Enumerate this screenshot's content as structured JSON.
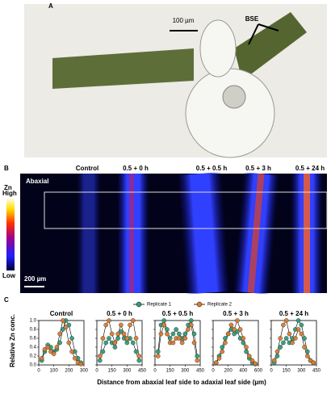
{
  "panel_a": {
    "label": "A",
    "scale_bar": "100 µm",
    "annotation": "BSE"
  },
  "panel_b": {
    "label": "B",
    "columns": [
      "Control",
      "0.5 + 0 h",
      "0.5 + 0.5 h",
      "0.5 + 3 h",
      "0.5 + 24 h"
    ],
    "region_label": "Abaxial",
    "colorbar": {
      "title": "Zn",
      "high": "High",
      "low": "Low"
    },
    "scale_bar": "200 µm"
  },
  "panel_c": {
    "label": "C",
    "y_label": "Relative Zn conc.",
    "x_label": "Distance from abaxial leaf side to adaxial leaf side (µm)"
  },
  "chart_data": [
    {
      "type": "scatter",
      "title": "Control",
      "xlim": [
        0,
        300
      ],
      "xticks": [
        0,
        100,
        200,
        300
      ],
      "ylim": [
        0,
        1
      ],
      "yticks": [
        {
          "value": 0,
          "label": "0.0"
        },
        0.2,
        0.4,
        0.6,
        0.8,
        {
          "value": 1,
          "label": "1.0"
        }
      ],
      "x": [
        20,
        40,
        60,
        80,
        100,
        120,
        140,
        160,
        180,
        200,
        220,
        240,
        260,
        280
      ],
      "series": [
        {
          "name": "Replicate 1",
          "color": "#2a9d78",
          "values": [
            0.1,
            0.3,
            0.45,
            0.4,
            0.3,
            0.35,
            0.5,
            0.8,
            1.0,
            0.9,
            0.6,
            0.3,
            0.15,
            0.05
          ]
        },
        {
          "name": "Replicate 2",
          "color": "#e07b2a",
          "values": [
            0.15,
            0.35,
            0.4,
            0.3,
            0.25,
            0.4,
            0.7,
            1.0,
            0.85,
            0.5,
            0.3,
            0.15,
            0.05,
            0.02
          ]
        }
      ]
    },
    {
      "type": "scatter",
      "title": "0.5 + 0 h",
      "xlim": [
        0,
        450
      ],
      "xticks": [
        0,
        150,
        300,
        450
      ],
      "ylim": [
        0,
        1
      ],
      "yticks": [
        0,
        0.2,
        0.4,
        0.6,
        0.8,
        1
      ],
      "x": [
        30,
        60,
        90,
        120,
        150,
        180,
        210,
        240,
        270,
        300,
        330,
        360,
        390,
        420
      ],
      "series": [
        {
          "name": "Replicate 1",
          "color": "#2a9d78",
          "values": [
            0.1,
            0.3,
            0.5,
            0.6,
            0.5,
            0.4,
            0.6,
            0.75,
            0.6,
            0.5,
            0.6,
            0.5,
            0.3,
            0.1
          ]
        },
        {
          "name": "Replicate 2",
          "color": "#e07b2a",
          "values": [
            0.2,
            0.6,
            0.9,
            1.0,
            0.7,
            0.5,
            0.7,
            0.9,
            0.7,
            0.6,
            0.9,
            1.0,
            0.6,
            0.2
          ]
        }
      ]
    },
    {
      "type": "scatter",
      "title": "0.5 + 0.5 h",
      "xlim": [
        0,
        450
      ],
      "xticks": [
        0,
        150,
        300,
        450
      ],
      "ylim": [
        0,
        1
      ],
      "yticks": [
        0,
        0.2,
        0.4,
        0.6,
        0.8,
        1
      ],
      "x": [
        30,
        60,
        90,
        120,
        150,
        180,
        210,
        240,
        270,
        300,
        330,
        360,
        390,
        420
      ],
      "series": [
        {
          "name": "Replicate 1",
          "color": "#2a9d78",
          "values": [
            0.3,
            0.9,
            1.0,
            0.8,
            0.6,
            0.7,
            0.8,
            0.7,
            0.6,
            0.7,
            0.9,
            1.0,
            0.7,
            0.2
          ]
        },
        {
          "name": "Replicate 2",
          "color": "#e07b2a",
          "values": [
            0.2,
            0.7,
            0.9,
            0.7,
            0.5,
            0.5,
            0.6,
            0.6,
            0.5,
            0.6,
            0.8,
            0.9,
            0.5,
            0.1
          ]
        }
      ]
    },
    {
      "type": "scatter",
      "title": "0.5 + 3 h",
      "xlim": [
        0,
        600
      ],
      "xticks": [
        0,
        200,
        400,
        600
      ],
      "ylim": [
        0,
        1
      ],
      "yticks": [
        0,
        0.2,
        0.4,
        0.6,
        0.8,
        1
      ],
      "x": [
        40,
        80,
        120,
        160,
        200,
        240,
        280,
        320,
        360,
        400,
        440,
        480,
        520,
        560
      ],
      "series": [
        {
          "name": "Replicate 1",
          "color": "#2a9d78",
          "values": [
            0.05,
            0.2,
            0.4,
            0.6,
            0.7,
            0.8,
            0.7,
            0.75,
            0.6,
            0.5,
            0.3,
            0.15,
            0.05,
            0.02
          ]
        },
        {
          "name": "Replicate 2",
          "color": "#e07b2a",
          "values": [
            0.05,
            0.15,
            0.3,
            0.5,
            0.7,
            0.9,
            0.8,
            1.0,
            0.8,
            0.6,
            0.4,
            0.2,
            0.1,
            0.03
          ]
        }
      ]
    },
    {
      "type": "scatter",
      "title": "0.5 + 24 h",
      "xlim": [
        0,
        450
      ],
      "xticks": [
        0,
        150,
        300,
        450
      ],
      "ylim": [
        0,
        1
      ],
      "yticks": [
        0,
        0.2,
        0.4,
        0.6,
        0.8,
        1
      ],
      "x": [
        30,
        60,
        90,
        120,
        150,
        180,
        210,
        240,
        270,
        300,
        330,
        360,
        390,
        420
      ],
      "series": [
        {
          "name": "Replicate 1",
          "color": "#2a9d78",
          "values": [
            0.05,
            0.2,
            0.4,
            0.5,
            0.6,
            0.5,
            0.6,
            0.8,
            1.0,
            0.9,
            0.6,
            0.3,
            0.1,
            0.05
          ]
        },
        {
          "name": "Replicate 2",
          "color": "#e07b2a",
          "values": [
            0.1,
            0.3,
            0.6,
            0.9,
            1.0,
            0.7,
            0.5,
            0.6,
            0.8,
            0.7,
            0.4,
            0.2,
            0.1,
            0.05
          ]
        }
      ]
    }
  ]
}
